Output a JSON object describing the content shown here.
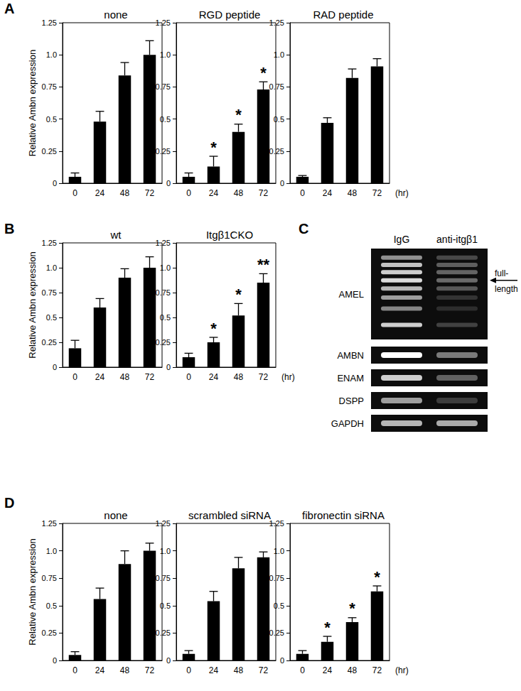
{
  "panel_labels": [
    "A",
    "B",
    "C",
    "D"
  ],
  "chart_data": [
    {
      "type": "bar",
      "title": "none",
      "categories": [
        "0",
        "24",
        "48",
        "72"
      ],
      "values": [
        0.05,
        0.48,
        0.84,
        1.0
      ],
      "errors": [
        0.03,
        0.08,
        0.1,
        0.11
      ],
      "significance": [
        null,
        null,
        null,
        null
      ],
      "color": "#000000",
      "ylim": [
        0,
        1.25
      ],
      "yticks": [
        0,
        0.25,
        0.5,
        0.75,
        {
          "value": 1,
          "label": "1.0"
        },
        1.25
      ],
      "ylabel": "Relative Ambn expression",
      "grid": false
    },
    {
      "type": "bar",
      "title": "RGD peptide",
      "categories": [
        "0",
        "24",
        "48",
        "72"
      ],
      "values": [
        0.05,
        0.13,
        0.4,
        0.73
      ],
      "errors": [
        0.03,
        0.08,
        0.06,
        0.06
      ],
      "significance": [
        null,
        "*",
        "*",
        "*"
      ],
      "color": "#000000",
      "ylim": [
        0,
        1.25
      ],
      "yticks": [
        0,
        0.25,
        0.5,
        0.75,
        {
          "value": 1,
          "label": "1.0"
        },
        1.25
      ],
      "grid": false
    },
    {
      "type": "bar",
      "title": "RAD peptide",
      "categories": [
        "0",
        "24",
        "48",
        "72"
      ],
      "values": [
        0.05,
        0.47,
        0.82,
        0.91
      ],
      "errors": [
        0.01,
        0.04,
        0.07,
        0.06
      ],
      "significance": [
        null,
        null,
        null,
        null
      ],
      "color": "#000000",
      "ylim": [
        0,
        1.25
      ],
      "yticks": [
        0,
        0.25,
        0.5,
        0.75,
        {
          "value": 1,
          "label": "1.0"
        },
        1.25
      ],
      "xlabel": "(hr)",
      "grid": false
    },
    {
      "type": "bar",
      "title": "wt",
      "categories": [
        "0",
        "24",
        "48",
        "72"
      ],
      "values": [
        0.19,
        0.6,
        0.9,
        1.0
      ],
      "errors": [
        0.08,
        0.09,
        0.09,
        0.11
      ],
      "significance": [
        null,
        null,
        null,
        null
      ],
      "color": "#000000",
      "ylim": [
        0,
        1.25
      ],
      "yticks": [
        0,
        0.25,
        0.5,
        0.75,
        {
          "value": 1,
          "label": "1.0"
        },
        1.25
      ],
      "ylabel": "Relative Ambn expression",
      "grid": false
    },
    {
      "type": "bar",
      "title": "Itgβ1CKO",
      "categories": [
        "0",
        "24",
        "48",
        "72"
      ],
      "values": [
        0.1,
        0.25,
        0.52,
        0.85
      ],
      "errors": [
        0.04,
        0.05,
        0.12,
        0.09
      ],
      "significance": [
        null,
        "*",
        "*",
        "**"
      ],
      "color": "#000000",
      "ylim": [
        0,
        1.25
      ],
      "yticks": [
        0,
        0.25,
        0.5,
        0.75,
        {
          "value": 1,
          "label": "1.0"
        },
        1.25
      ],
      "xlabel": "(hr)",
      "grid": false
    },
    {
      "type": "bar",
      "title": "none",
      "categories": [
        "0",
        "24",
        "48",
        "72"
      ],
      "values": [
        0.05,
        0.56,
        0.88,
        1.0
      ],
      "errors": [
        0.03,
        0.1,
        0.12,
        0.07
      ],
      "significance": [
        null,
        null,
        null,
        null
      ],
      "color": "#000000",
      "ylim": [
        0,
        1.25
      ],
      "yticks": [
        0,
        0.25,
        0.5,
        0.75,
        {
          "value": 1,
          "label": "1.0"
        },
        1.25
      ],
      "ylabel": "Relative Ambn expression",
      "grid": false
    },
    {
      "type": "bar",
      "title": "scrambled siRNA",
      "categories": [
        "0",
        "24",
        "48",
        "72"
      ],
      "values": [
        0.06,
        0.54,
        0.84,
        0.94
      ],
      "errors": [
        0.03,
        0.09,
        0.1,
        0.05
      ],
      "significance": [
        null,
        null,
        null,
        null
      ],
      "color": "#000000",
      "ylim": [
        0,
        1.25
      ],
      "yticks": [
        0,
        0.25,
        0.5,
        0.75,
        {
          "value": 1,
          "label": "1.0"
        },
        1.25
      ],
      "grid": false
    },
    {
      "type": "bar",
      "title": "fibronectin siRNA",
      "categories": [
        "0",
        "24",
        "48",
        "72"
      ],
      "values": [
        0.06,
        0.17,
        0.35,
        0.63
      ],
      "errors": [
        0.03,
        0.05,
        0.04,
        0.05
      ],
      "significance": [
        null,
        "*",
        "*",
        "*"
      ],
      "color": "#000000",
      "ylim": [
        0,
        1.25
      ],
      "yticks": [
        0,
        0.25,
        0.5,
        0.75,
        {
          "value": 1,
          "label": "1.0"
        },
        1.25
      ],
      "xlabel": "(hr)",
      "grid": false
    }
  ],
  "gel": {
    "lanes": [
      "IgG",
      "anti-itgβ1"
    ],
    "rows": [
      {
        "label": "AMEL",
        "intensity": [
          1,
          0.45
        ]
      },
      {
        "label": "AMBN",
        "intensity": [
          1,
          0.45
        ]
      },
      {
        "label": "ENAM",
        "intensity": [
          0.8,
          0.35
        ]
      },
      {
        "label": "DSPP",
        "intensity": [
          0.6,
          0.2
        ]
      },
      {
        "label": "GAPDH",
        "intensity": [
          0.7,
          0.65
        ]
      }
    ],
    "annotation": {
      "row": "AMEL",
      "text": "full-length"
    }
  }
}
